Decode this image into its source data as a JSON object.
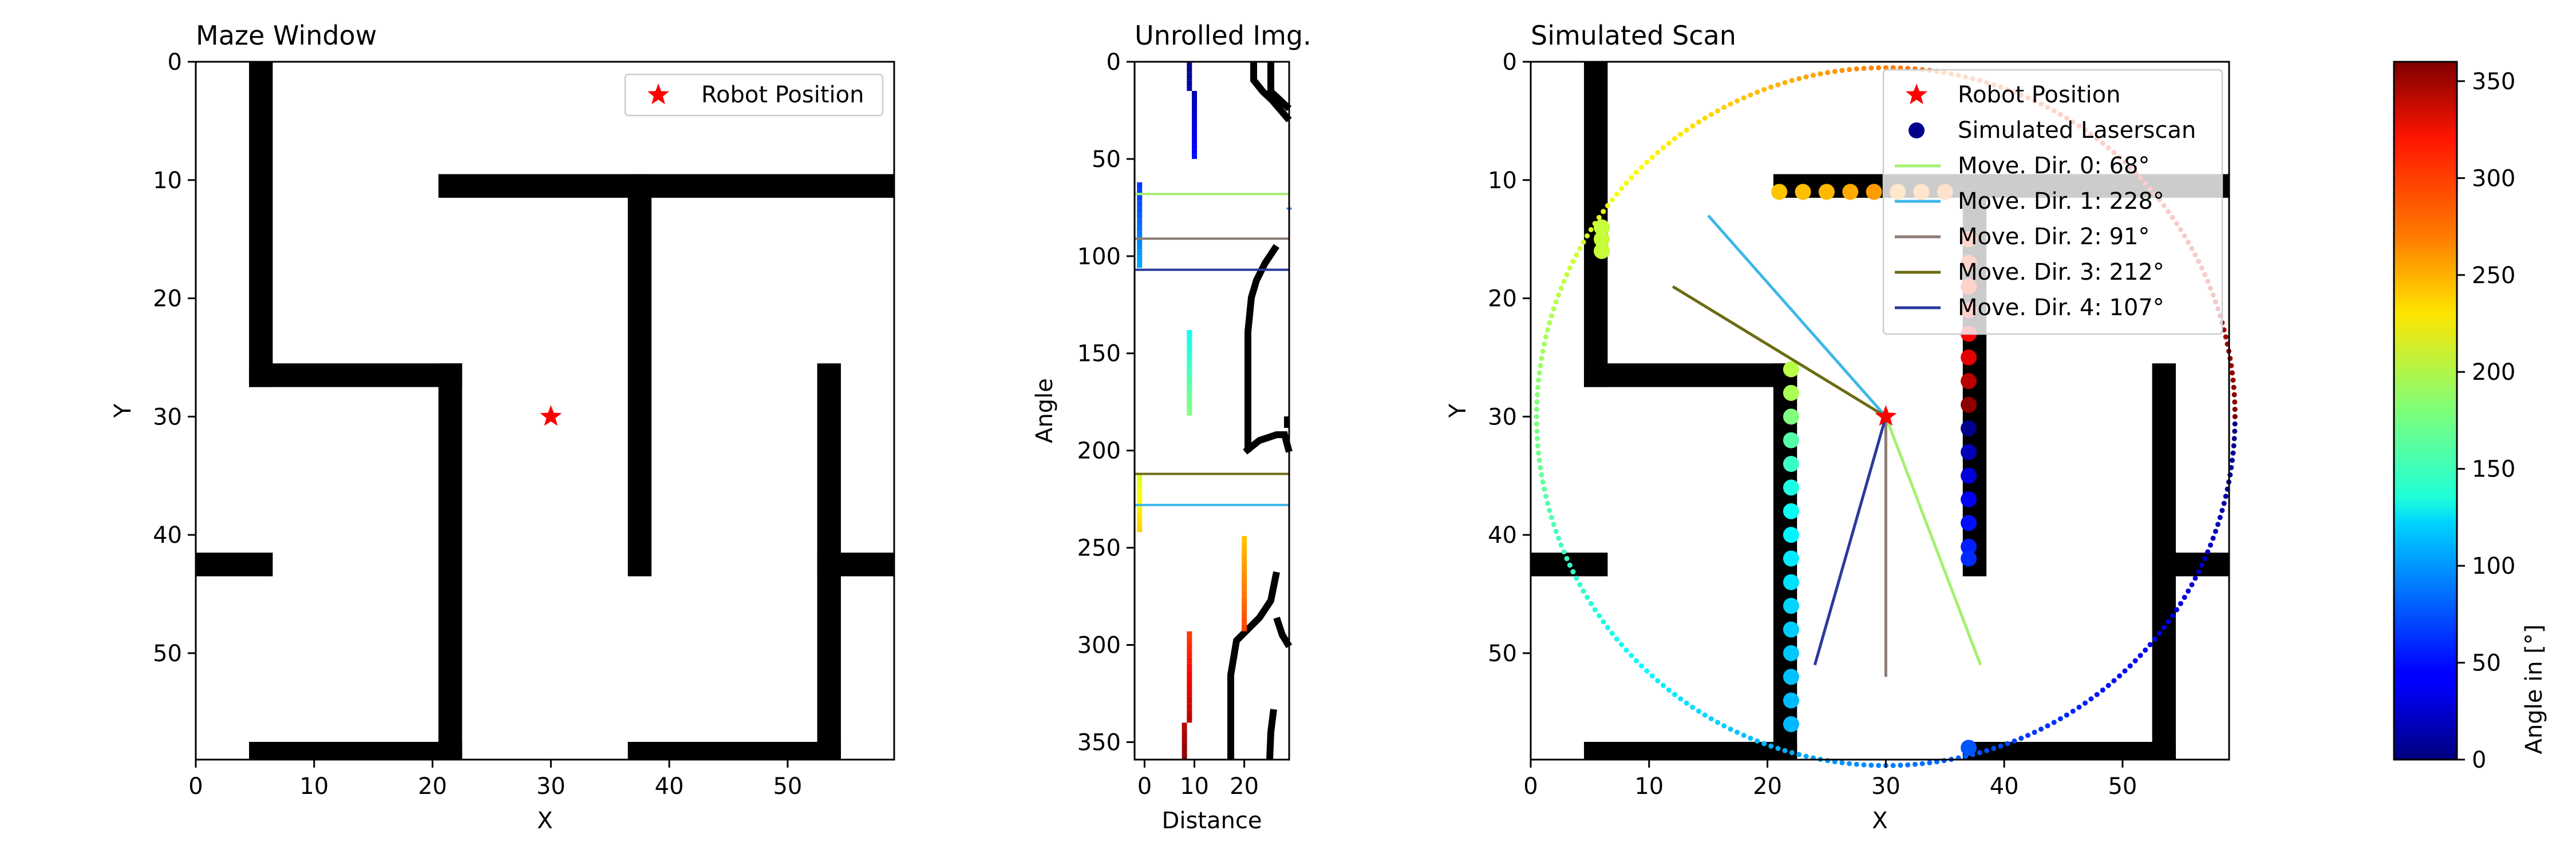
{
  "chart_data": [
    {
      "type": "heatmap",
      "title": "Maze Window",
      "xlabel": "X",
      "ylabel": "Y",
      "xlim": [
        0,
        59
      ],
      "ylim": [
        59,
        0
      ],
      "xticks": [
        0,
        10,
        20,
        30,
        40,
        50
      ],
      "yticks": [
        0,
        10,
        20,
        30,
        40,
        50
      ],
      "walls": [
        [
          4.5,
          0,
          6.5,
          27.5
        ],
        [
          4.5,
          25.5,
          22.5,
          27.5
        ],
        [
          20.5,
          25.5,
          22.5,
          59
        ],
        [
          4.5,
          57.5,
          22.5,
          59
        ],
        [
          0,
          41.5,
          6.5,
          43.5
        ],
        [
          20.5,
          9.5,
          59,
          11.5
        ],
        [
          36.5,
          9.5,
          38.5,
          43.5
        ],
        [
          52.5,
          25.5,
          54.5,
          59
        ],
        [
          52.5,
          41.5,
          59,
          43.5
        ],
        [
          36.5,
          57.5,
          54.5,
          59
        ]
      ],
      "robot": {
        "x": 30,
        "y": 30
      },
      "legend": [
        "Robot Position"
      ],
      "legend_position": "upper right"
    },
    {
      "type": "heatmap",
      "title": "Unrolled Img.",
      "xlabel": "Distance",
      "ylabel": "Angle",
      "xlim": [
        -2,
        29
      ],
      "ylim": [
        359,
        0
      ],
      "xticks": [
        0,
        10,
        20
      ],
      "yticks": [
        0,
        50,
        100,
        150,
        200,
        250,
        300,
        350
      ],
      "move_lines": [
        {
          "angle": 68,
          "color": "#a4f070"
        },
        {
          "angle": 228,
          "color": "#3db7e9"
        },
        {
          "angle": 91,
          "color": "#8c7c74"
        },
        {
          "angle": 212,
          "color": "#6b6b12"
        },
        {
          "angle": 107,
          "color": "#2a3a9a"
        }
      ],
      "scan_hits": [
        {
          "angles": [
            0,
            15
          ],
          "dist": 9
        },
        {
          "angles": [
            15,
            50
          ],
          "dist": 10
        },
        {
          "angles": [
            62,
            106
          ],
          "dist": -1
        },
        {
          "angles": [
            75,
            76
          ],
          "dist": 29
        },
        {
          "angles": [
            138,
            182
          ],
          "dist": 9
        },
        {
          "angles": [
            212,
            242
          ],
          "dist": -1
        },
        {
          "angles": [
            244,
            293
          ],
          "dist": 20
        },
        {
          "angles": [
            293,
            340
          ],
          "dist": 9
        },
        {
          "angles": [
            340,
            359
          ],
          "dist": 8
        }
      ]
    },
    {
      "type": "scatter",
      "title": "Simulated Scan",
      "xlabel": "X",
      "ylabel": "Y",
      "xlim": [
        0,
        59
      ],
      "ylim": [
        59,
        0
      ],
      "xticks": [
        0,
        10,
        20,
        30,
        40,
        50
      ],
      "yticks": [
        0,
        10,
        20,
        30,
        40,
        50
      ],
      "robot": {
        "x": 30,
        "y": 30
      },
      "scan_radius": 29.5,
      "move_dirs": [
        {
          "label": "Move. Dir. 0: 68°",
          "angle": 68,
          "end": [
            38,
            51
          ],
          "color": "#a4f070"
        },
        {
          "label": "Move. Dir. 1: 228°",
          "angle": 228,
          "end": [
            15,
            13
          ],
          "color": "#3db7e9"
        },
        {
          "label": "Move. Dir. 2: 91°",
          "angle": 91,
          "end": [
            30,
            52
          ],
          "color": "#8c7c74"
        },
        {
          "label": "Move. Dir. 3: 212°",
          "angle": 212,
          "end": [
            12,
            19
          ],
          "color": "#6b6b12"
        },
        {
          "label": "Move. Dir. 4: 107°",
          "angle": 107,
          "end": [
            24,
            51
          ],
          "color": "#2a3a9a"
        }
      ],
      "laser_points": [
        {
          "x": 6,
          "y": 14,
          "angle": 205
        },
        {
          "x": 6,
          "y": 15,
          "angle": 205
        },
        {
          "x": 6,
          "y": 16,
          "angle": 205
        },
        {
          "x": 21,
          "y": 11,
          "angle": 245
        },
        {
          "x": 23,
          "y": 11,
          "angle": 248
        },
        {
          "x": 25,
          "y": 11,
          "angle": 250
        },
        {
          "x": 27,
          "y": 11,
          "angle": 255
        },
        {
          "x": 29,
          "y": 11,
          "angle": 260
        },
        {
          "x": 31,
          "y": 11,
          "angle": 265
        },
        {
          "x": 33,
          "y": 11,
          "angle": 270
        },
        {
          "x": 35,
          "y": 11,
          "angle": 275
        },
        {
          "x": 37,
          "y": 15,
          "angle": 295
        },
        {
          "x": 37,
          "y": 17,
          "angle": 298
        },
        {
          "x": 37,
          "y": 19,
          "angle": 302
        },
        {
          "x": 37,
          "y": 21,
          "angle": 308
        },
        {
          "x": 37,
          "y": 23,
          "angle": 315
        },
        {
          "x": 37,
          "y": 25,
          "angle": 325
        },
        {
          "x": 37,
          "y": 27,
          "angle": 340
        },
        {
          "x": 37,
          "y": 29,
          "angle": 355
        },
        {
          "x": 37,
          "y": 31,
          "angle": 5
        },
        {
          "x": 37,
          "y": 33,
          "angle": 20
        },
        {
          "x": 37,
          "y": 35,
          "angle": 32
        },
        {
          "x": 37,
          "y": 37,
          "angle": 42
        },
        {
          "x": 37,
          "y": 39,
          "angle": 50
        },
        {
          "x": 37,
          "y": 41,
          "angle": 56
        },
        {
          "x": 37,
          "y": 42,
          "angle": 60
        },
        {
          "x": 37,
          "y": 58,
          "angle": 75
        },
        {
          "x": 22,
          "y": 26,
          "angle": 200
        },
        {
          "x": 22,
          "y": 28,
          "angle": 195
        },
        {
          "x": 22,
          "y": 30,
          "angle": 180
        },
        {
          "x": 22,
          "y": 32,
          "angle": 165
        },
        {
          "x": 22,
          "y": 34,
          "angle": 155
        },
        {
          "x": 22,
          "y": 36,
          "angle": 145
        },
        {
          "x": 22,
          "y": 38,
          "angle": 138
        },
        {
          "x": 22,
          "y": 40,
          "angle": 132
        },
        {
          "x": 22,
          "y": 42,
          "angle": 128
        },
        {
          "x": 22,
          "y": 44,
          "angle": 124
        },
        {
          "x": 22,
          "y": 46,
          "angle": 120
        },
        {
          "x": 22,
          "y": 48,
          "angle": 117
        },
        {
          "x": 22,
          "y": 50,
          "angle": 115
        },
        {
          "x": 22,
          "y": 52,
          "angle": 113
        },
        {
          "x": 22,
          "y": 54,
          "angle": 111
        },
        {
          "x": 22,
          "y": 56,
          "angle": 110
        }
      ],
      "legend": [
        "Robot Position",
        "Simulated Laserscan",
        "Move. Dir. 0: 68°",
        "Move. Dir. 1: 228°",
        "Move. Dir. 2: 91°",
        "Move. Dir. 3: 212°",
        "Move. Dir. 4: 107°"
      ],
      "legend_position": "upper right"
    },
    {
      "type": "colorbar",
      "label": "Angle in [°]",
      "range": [
        0,
        360
      ],
      "ticks": [
        0,
        50,
        100,
        150,
        200,
        250,
        300,
        350
      ],
      "colormap": "jet"
    }
  ]
}
